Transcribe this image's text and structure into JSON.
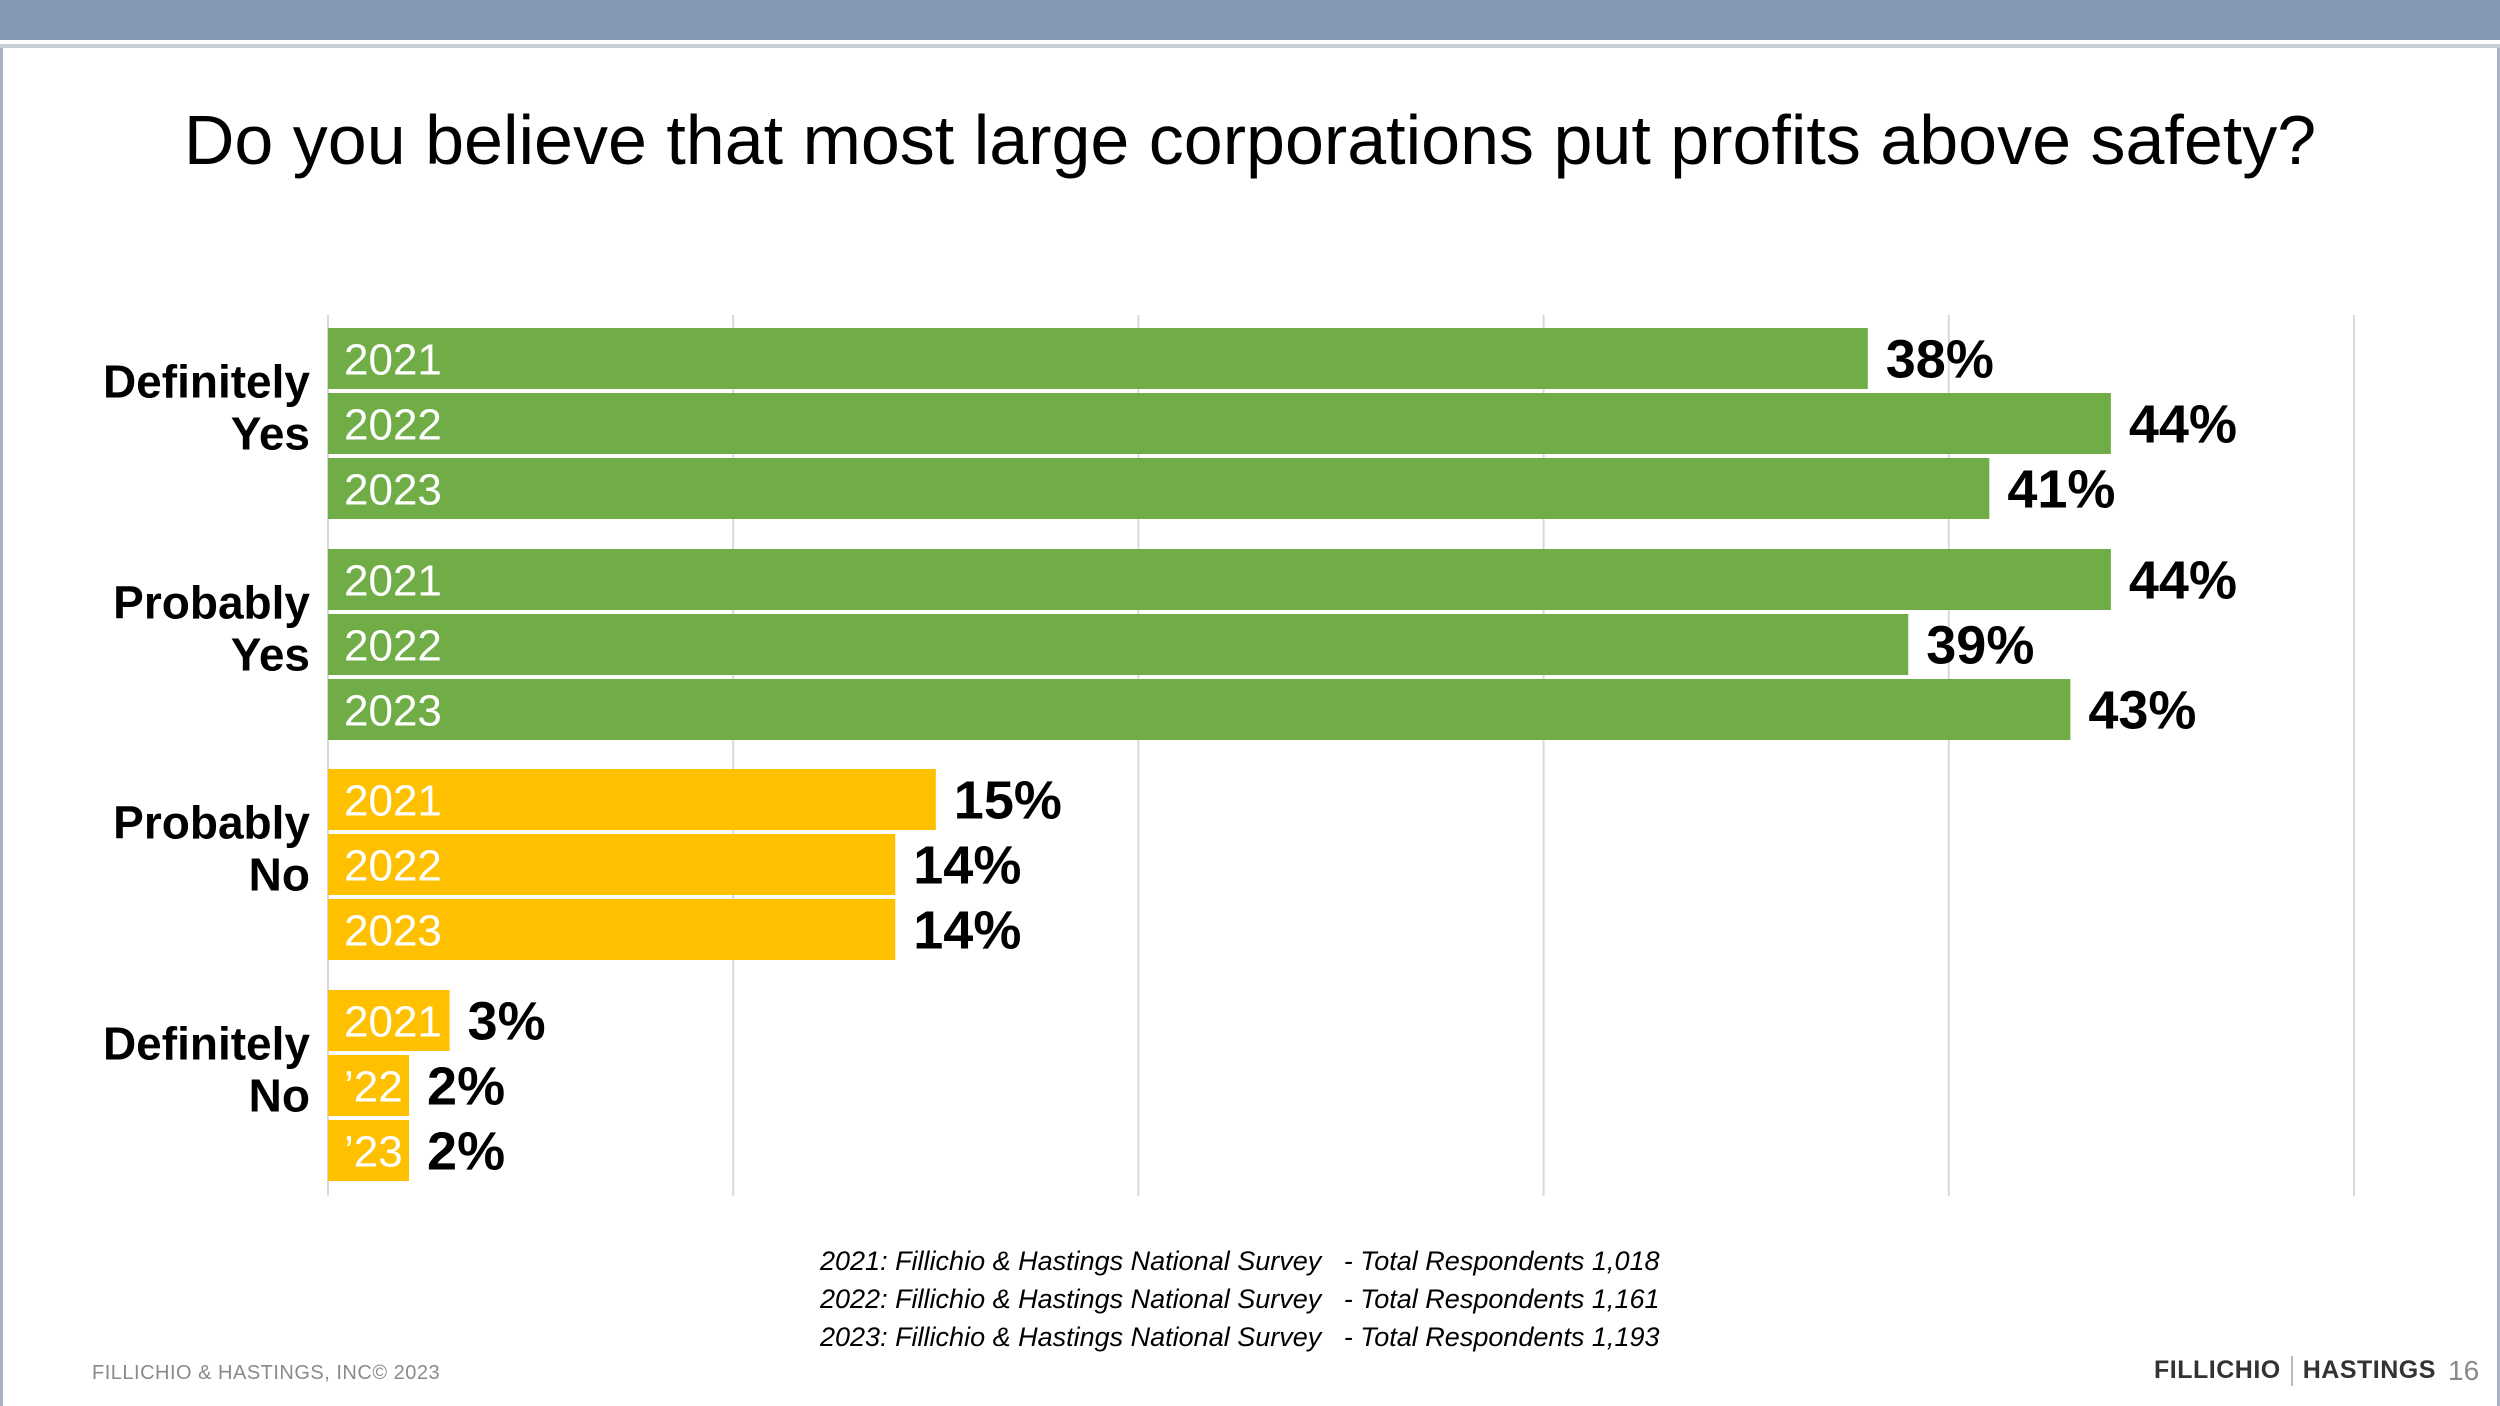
{
  "title": "Do you believe that most large corporations put profits above safety?",
  "colors": {
    "positive": "#70ad47",
    "negative": "#ffc000",
    "grid": "#d9d9d9"
  },
  "chart_data": {
    "type": "bar",
    "orientation": "horizontal",
    "xlim": [
      0,
      50
    ],
    "grid": true,
    "categories": [
      "Definitely Yes",
      "Probably Yes",
      "Probably No",
      "Definitely No"
    ],
    "category_lines": [
      [
        "Definitely",
        "Yes"
      ],
      [
        "Probably",
        "Yes"
      ],
      [
        "Probably",
        "No"
      ],
      [
        "Definitely",
        "No"
      ]
    ],
    "category_colors": [
      "#70ad47",
      "#70ad47",
      "#ffc000",
      "#ffc000"
    ],
    "series": [
      {
        "name": "2021",
        "values": [
          38,
          44,
          15,
          3
        ]
      },
      {
        "name": "2022",
        "values": [
          44,
          39,
          14,
          2
        ]
      },
      {
        "name": "2023",
        "values": [
          41,
          43,
          14,
          2
        ]
      }
    ],
    "bar_labels": [
      [
        "2021",
        "2022",
        "2023"
      ],
      [
        "2021",
        "2022",
        "2023"
      ],
      [
        "2021",
        "2022",
        "2023"
      ],
      [
        "2021",
        "’22",
        "’23"
      ]
    ],
    "value_labels": [
      [
        "38%",
        "44%",
        "41%"
      ],
      [
        "44%",
        "39%",
        "43%"
      ],
      [
        "15%",
        "14%",
        "14%"
      ],
      [
        "3%",
        "2%",
        "2%"
      ]
    ]
  },
  "notes": [
    {
      "survey": "2021: Fillichio & Hastings National Survey",
      "total": "- Total Respondents 1,018"
    },
    {
      "survey": "2022: Fillichio & Hastings National Survey",
      "total": "- Total Respondents 1,161"
    },
    {
      "survey": "2023: Fillichio & Hastings National Survey",
      "total": "- Total Respondents 1,193"
    }
  ],
  "footer": {
    "copyright": "FILLICHIO & HASTINGS, INC© 2023",
    "brand_left": "FILLICHIO",
    "brand_right": "HASTINGS",
    "page_number": "16"
  }
}
